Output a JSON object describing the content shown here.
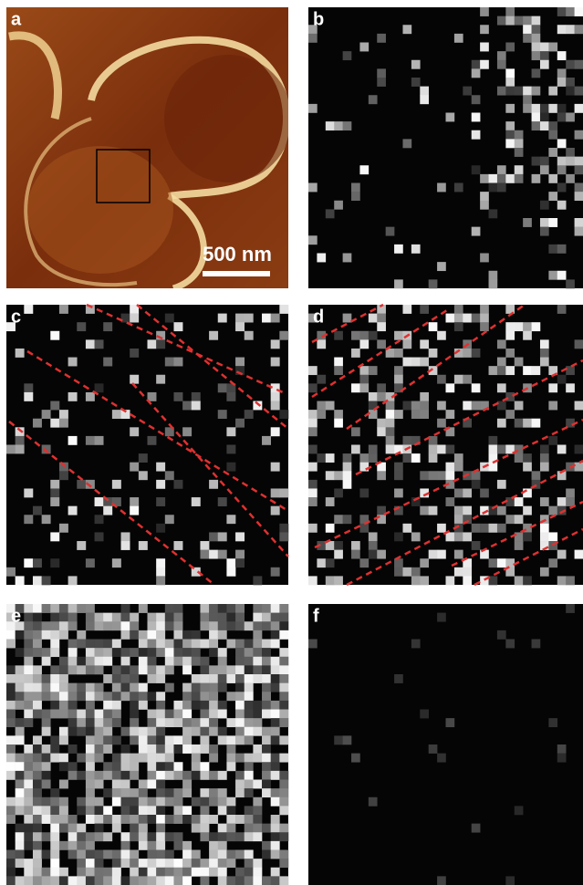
{
  "panels": [
    {
      "label": "a"
    },
    {
      "label": "b"
    },
    {
      "label": "c"
    },
    {
      "label": "d"
    },
    {
      "label": "e"
    },
    {
      "label": "f"
    }
  ],
  "scale_bar": "500 nm"
}
